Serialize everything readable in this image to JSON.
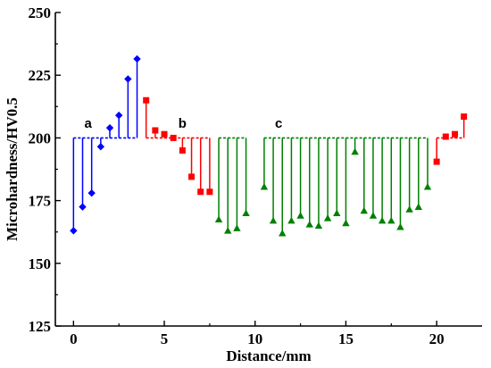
{
  "chart_data": {
    "type": "stem",
    "xlabel": "Distance/mm",
    "ylabel": "Microhardness/HV0.5",
    "xlim": [
      -1,
      22.5
    ],
    "ylim": [
      125,
      250
    ],
    "baseline": 200,
    "x_ticks": [
      0,
      5,
      10,
      15,
      20
    ],
    "y_ticks": [
      125,
      150,
      175,
      200,
      225,
      250
    ],
    "grid": false,
    "annotations": [
      {
        "text": "a",
        "x": 0.8,
        "y": 204
      },
      {
        "text": "b",
        "x": 6.0,
        "y": 204
      },
      {
        "text": "c",
        "x": 11.3,
        "y": 204
      }
    ],
    "series": [
      {
        "marker": "diamond",
        "color": "#0000ff",
        "x": [
          0,
          0.5,
          1,
          1.5,
          2,
          2.5,
          3,
          3.5
        ],
        "values": [
          163,
          172.5,
          178,
          196.5,
          204,
          209,
          223.5,
          231.5
        ]
      },
      {
        "marker": "square",
        "color": "#ff0000",
        "x": [
          4,
          4.5,
          5,
          5.5,
          6,
          6.5,
          7,
          7.5,
          20,
          20.5,
          21,
          21.5
        ],
        "values": [
          215,
          203,
          201.5,
          200,
          195,
          184.5,
          178.5,
          178.5,
          190.5,
          200.5,
          201.5,
          208.5
        ]
      },
      {
        "marker": "triangle",
        "color": "#008000",
        "x": [
          8,
          8.5,
          9,
          9.5,
          10.5,
          11,
          11.5,
          12,
          12.5,
          13,
          13.5,
          14,
          14.5,
          15,
          15.5,
          16,
          16.5,
          17,
          17.5,
          18,
          18.5,
          19,
          19.5
        ],
        "values": [
          167.5,
          163,
          164,
          170,
          180.5,
          167,
          162,
          167,
          169,
          165.5,
          165,
          168,
          170,
          166,
          194.5,
          171,
          169,
          167,
          167,
          164.5,
          171.5,
          172.5,
          180.5
        ]
      }
    ]
  }
}
